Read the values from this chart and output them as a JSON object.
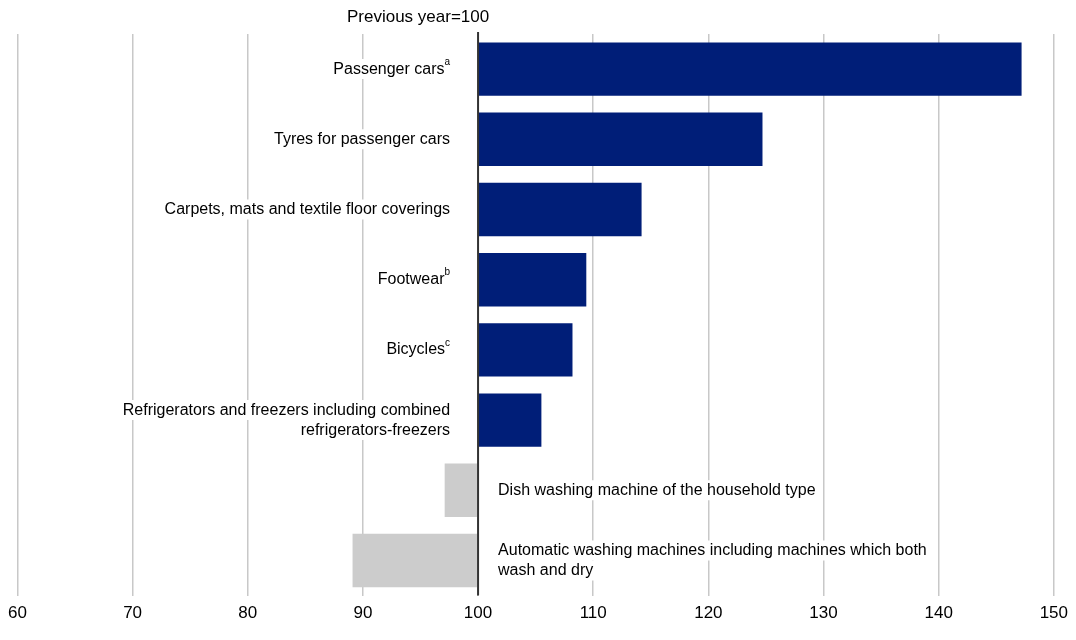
{
  "chart_data": {
    "type": "bar",
    "orientation": "horizontal",
    "title": "Previous year=100",
    "categories": [
      "Passenger cars$^{a}$",
      "Tyres for passenger cars",
      "Carpets, mats and textile floor coverings",
      "Footwear$^{b}$",
      "Bicycles$^{c}$",
      "Refrigerators and freezers including combined refrigerators-freezers",
      "Dish washing machine of the household type",
      "Automatic washing machines including machines which both wash and dry"
    ],
    "values": [
      47.2,
      24.7,
      14.2,
      9.4,
      8.2,
      5.5,
      -2.9,
      -10.9
    ],
    "base": [
      100,
      100,
      100,
      100,
      100,
      100,
      100,
      100
    ],
    "colors": [
      "#001e78",
      "#001e78",
      "#001e78",
      "#001e78",
      "#001e78",
      "#001e78",
      "#cccccc",
      "#cccccc"
    ],
    "xlim": [
      60,
      150
    ],
    "xticks": [
      60,
      70,
      80,
      90,
      100,
      110,
      120,
      130,
      140,
      150
    ],
    "grid": "x",
    "legend": false
  }
}
